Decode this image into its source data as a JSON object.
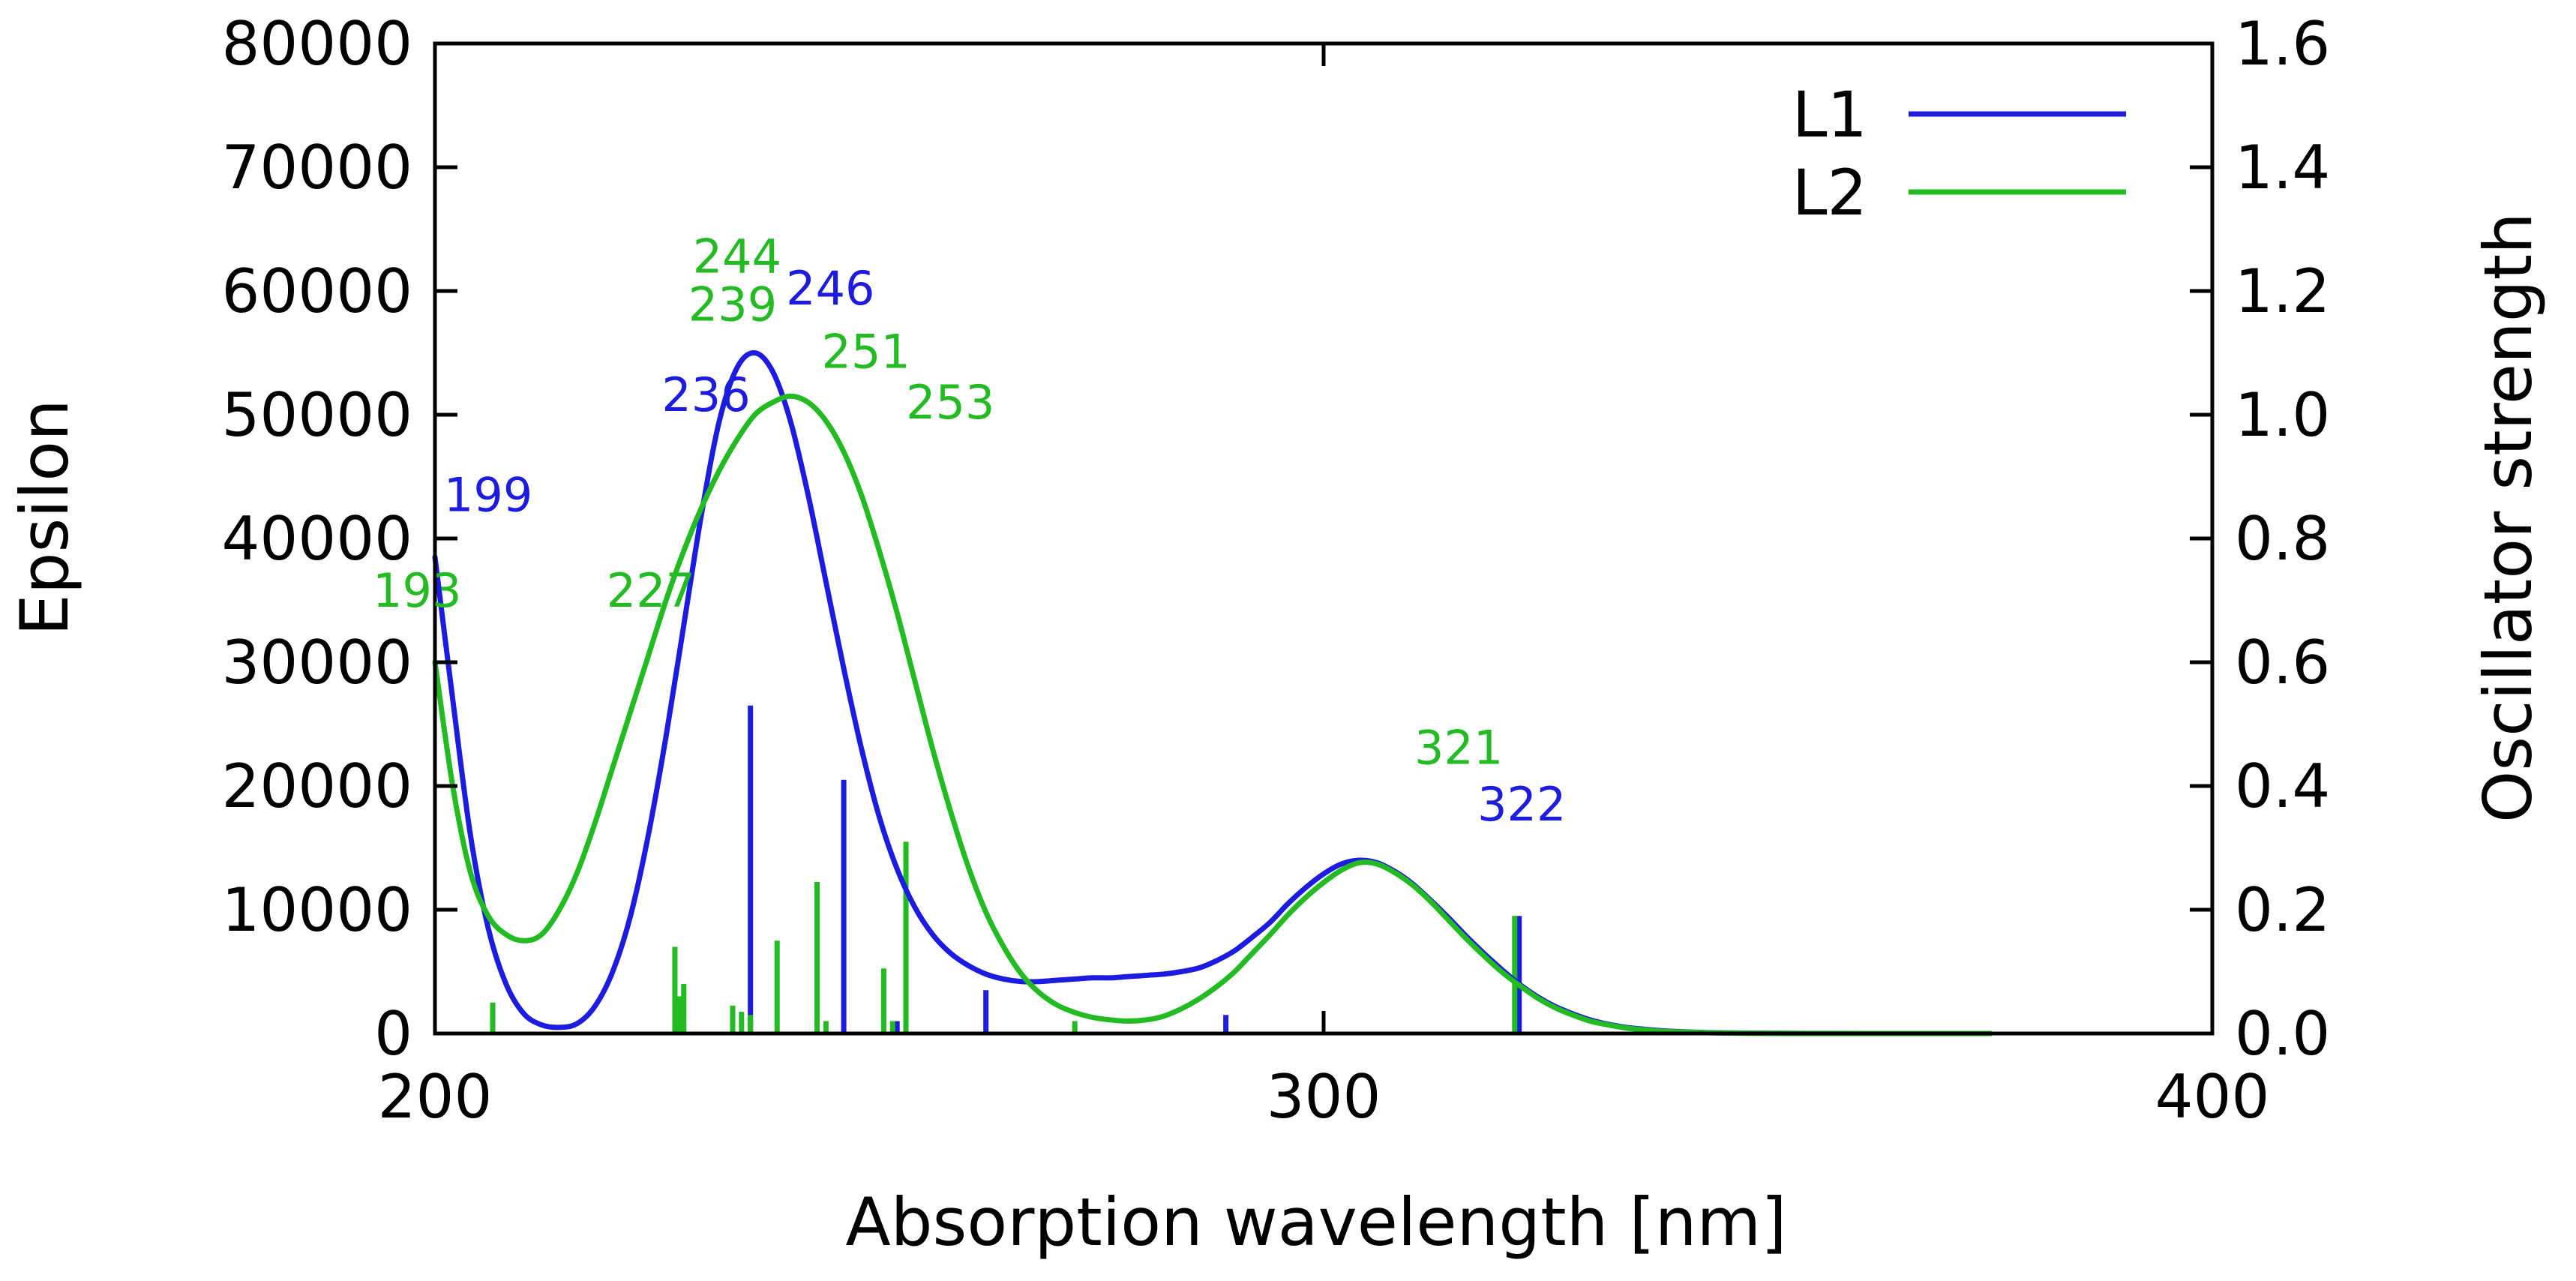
{
  "chart_data": {
    "type": "line",
    "title": "",
    "xlabel": "Absorption wavelength [nm]",
    "ylabel": "Epsilon",
    "y2label": "Oscillator strength",
    "xlim": [
      200,
      400
    ],
    "ylim": [
      0,
      80000
    ],
    "y2lim": [
      0,
      1.6
    ],
    "x_ticks": [
      200,
      300,
      400
    ],
    "x_tick_labels": [
      "200",
      "300",
      "400"
    ],
    "y_ticks": [
      0,
      10000,
      20000,
      30000,
      40000,
      50000,
      60000,
      70000,
      80000
    ],
    "y_tick_labels": [
      "0",
      "10000",
      "20000",
      "30000",
      "40000",
      "50000",
      "60000",
      "70000",
      "80000"
    ],
    "y2_ticks": [
      0,
      0.2,
      0.4,
      0.6,
      0.8,
      1.0,
      1.2,
      1.4,
      1.6
    ],
    "y2_tick_labels": [
      "0.0",
      "0.2",
      "0.4",
      "0.6",
      "0.8",
      "1.0",
      "1.2",
      "1.4",
      "1.6"
    ],
    "grid": false,
    "legend_position": "top-right",
    "series": [
      {
        "name": "L1",
        "color": "#1c1ce0",
        "x": [
          200,
          202,
          204,
          206,
          208,
          210,
          212,
          214,
          216,
          218,
          220,
          222,
          224,
          226,
          228,
          230,
          232,
          234,
          236,
          238,
          240,
          242,
          244,
          246,
          248,
          250,
          252,
          254,
          256,
          258,
          260,
          262,
          264,
          266,
          268,
          270,
          272,
          274,
          276,
          278,
          280,
          282,
          284,
          286,
          288,
          290,
          292,
          294,
          296,
          298,
          300,
          302,
          304,
          306,
          308,
          310,
          312,
          314,
          316,
          318,
          320,
          322,
          324,
          326,
          328,
          330,
          332,
          334,
          336,
          338,
          340,
          344,
          348,
          352,
          356,
          360,
          365,
          370,
          375
        ],
        "values": [
          38500,
          27000,
          16000,
          8500,
          4000,
          1600,
          700,
          500,
          800,
          2200,
          5000,
          9500,
          16000,
          24000,
          33000,
          42000,
          49500,
          53800,
          55000,
          53500,
          49500,
          43500,
          36500,
          29500,
          23000,
          17500,
          13300,
          10200,
          8000,
          6500,
          5500,
          4800,
          4400,
          4200,
          4200,
          4300,
          4400,
          4500,
          4500,
          4600,
          4700,
          4800,
          5000,
          5300,
          5900,
          6700,
          7800,
          9000,
          10500,
          11800,
          12900,
          13700,
          14000,
          13800,
          13100,
          12100,
          10800,
          9400,
          7900,
          6500,
          5200,
          4000,
          3000,
          2200,
          1600,
          1100,
          750,
          500,
          350,
          230,
          150,
          60,
          30,
          15,
          6,
          0,
          0,
          0,
          0
        ]
      },
      {
        "name": "L2",
        "color": "#22bb22",
        "x": [
          200,
          202,
          204,
          206,
          208,
          210,
          212,
          214,
          216,
          218,
          220,
          222,
          224,
          226,
          228,
          230,
          232,
          234,
          236,
          238,
          240,
          242,
          244,
          246,
          248,
          250,
          252,
          254,
          256,
          258,
          260,
          262,
          264,
          266,
          268,
          270,
          272,
          274,
          276,
          278,
          280,
          282,
          284,
          286,
          288,
          290,
          292,
          294,
          296,
          298,
          300,
          302,
          304,
          306,
          308,
          310,
          312,
          314,
          316,
          318,
          320,
          322,
          324,
          326,
          328,
          330,
          332,
          334,
          336,
          338,
          340,
          344,
          348,
          352,
          356,
          360,
          365,
          370,
          375
        ],
        "values": [
          30000,
          20000,
          13000,
          9500,
          8000,
          7500,
          8000,
          10000,
          13000,
          17000,
          21500,
          26000,
          30500,
          35000,
          39000,
          42500,
          45500,
          48000,
          50000,
          51000,
          51500,
          51000,
          49500,
          47000,
          43500,
          39000,
          34000,
          28500,
          23000,
          18000,
          13500,
          9800,
          7000,
          4800,
          3300,
          2300,
          1700,
          1300,
          1100,
          1000,
          1100,
          1400,
          2000,
          2800,
          3800,
          5000,
          6500,
          8000,
          9600,
          11000,
          12200,
          13200,
          13800,
          13700,
          13000,
          12000,
          10700,
          9200,
          7700,
          6300,
          5000,
          3900,
          2900,
          2100,
          1500,
          1000,
          700,
          450,
          300,
          190,
          120,
          50,
          20,
          8,
          3,
          0,
          0,
          0,
          0
        ]
      }
    ],
    "stick_spectra": [
      {
        "name": "L1",
        "x": [
          235.5,
          246,
          252,
          262,
          289,
          322
        ],
        "oscillator_strength": [
          0.53,
          0.41,
          0.02,
          0.07,
          0.03,
          0.19
        ]
      },
      {
        "name": "L2",
        "x": [
          206.5,
          227,
          227.5,
          228,
          233.5,
          234.5,
          235.5,
          238.5,
          243,
          244,
          250.5,
          251.5,
          253,
          272,
          321.5
        ],
        "oscillator_strength": [
          0.05,
          0.14,
          0.06,
          0.08,
          0.045,
          0.035,
          0.03,
          0.15,
          0.245,
          0.02,
          0.105,
          0.02,
          0.31,
          0.02,
          0.19
        ]
      }
    ],
    "annotations": [
      {
        "text": "199",
        "series": "L1",
        "x": 206,
        "y": 42200,
        "anchor": "middle"
      },
      {
        "text": "193",
        "series": "L2",
        "x": 193,
        "y": 34500,
        "anchor": "start"
      },
      {
        "text": "236",
        "series": "L1",
        "x": 235.5,
        "y": 50300,
        "anchor": "end"
      },
      {
        "text": "244",
        "series": "L2",
        "x": 234,
        "y": 61500,
        "anchor": "middle"
      },
      {
        "text": "239",
        "series": "L2",
        "x": 233.5,
        "y": 57600,
        "anchor": "middle"
      },
      {
        "text": "246",
        "series": "L1",
        "x": 244.5,
        "y": 58900,
        "anchor": "middle"
      },
      {
        "text": "251",
        "series": "L2",
        "x": 248.5,
        "y": 53800,
        "anchor": "middle"
      },
      {
        "text": "253",
        "series": "L2",
        "x": 258,
        "y": 49700,
        "anchor": "middle"
      },
      {
        "text": "227",
        "series": "L2",
        "x": 224.3,
        "y": 34500,
        "anchor": "middle"
      },
      {
        "text": "321",
        "series": "L2",
        "x": 315.2,
        "y": 21800,
        "anchor": "middle"
      },
      {
        "text": "322",
        "series": "L1",
        "x": 322.3,
        "y": 17200,
        "anchor": "middle"
      }
    ]
  }
}
